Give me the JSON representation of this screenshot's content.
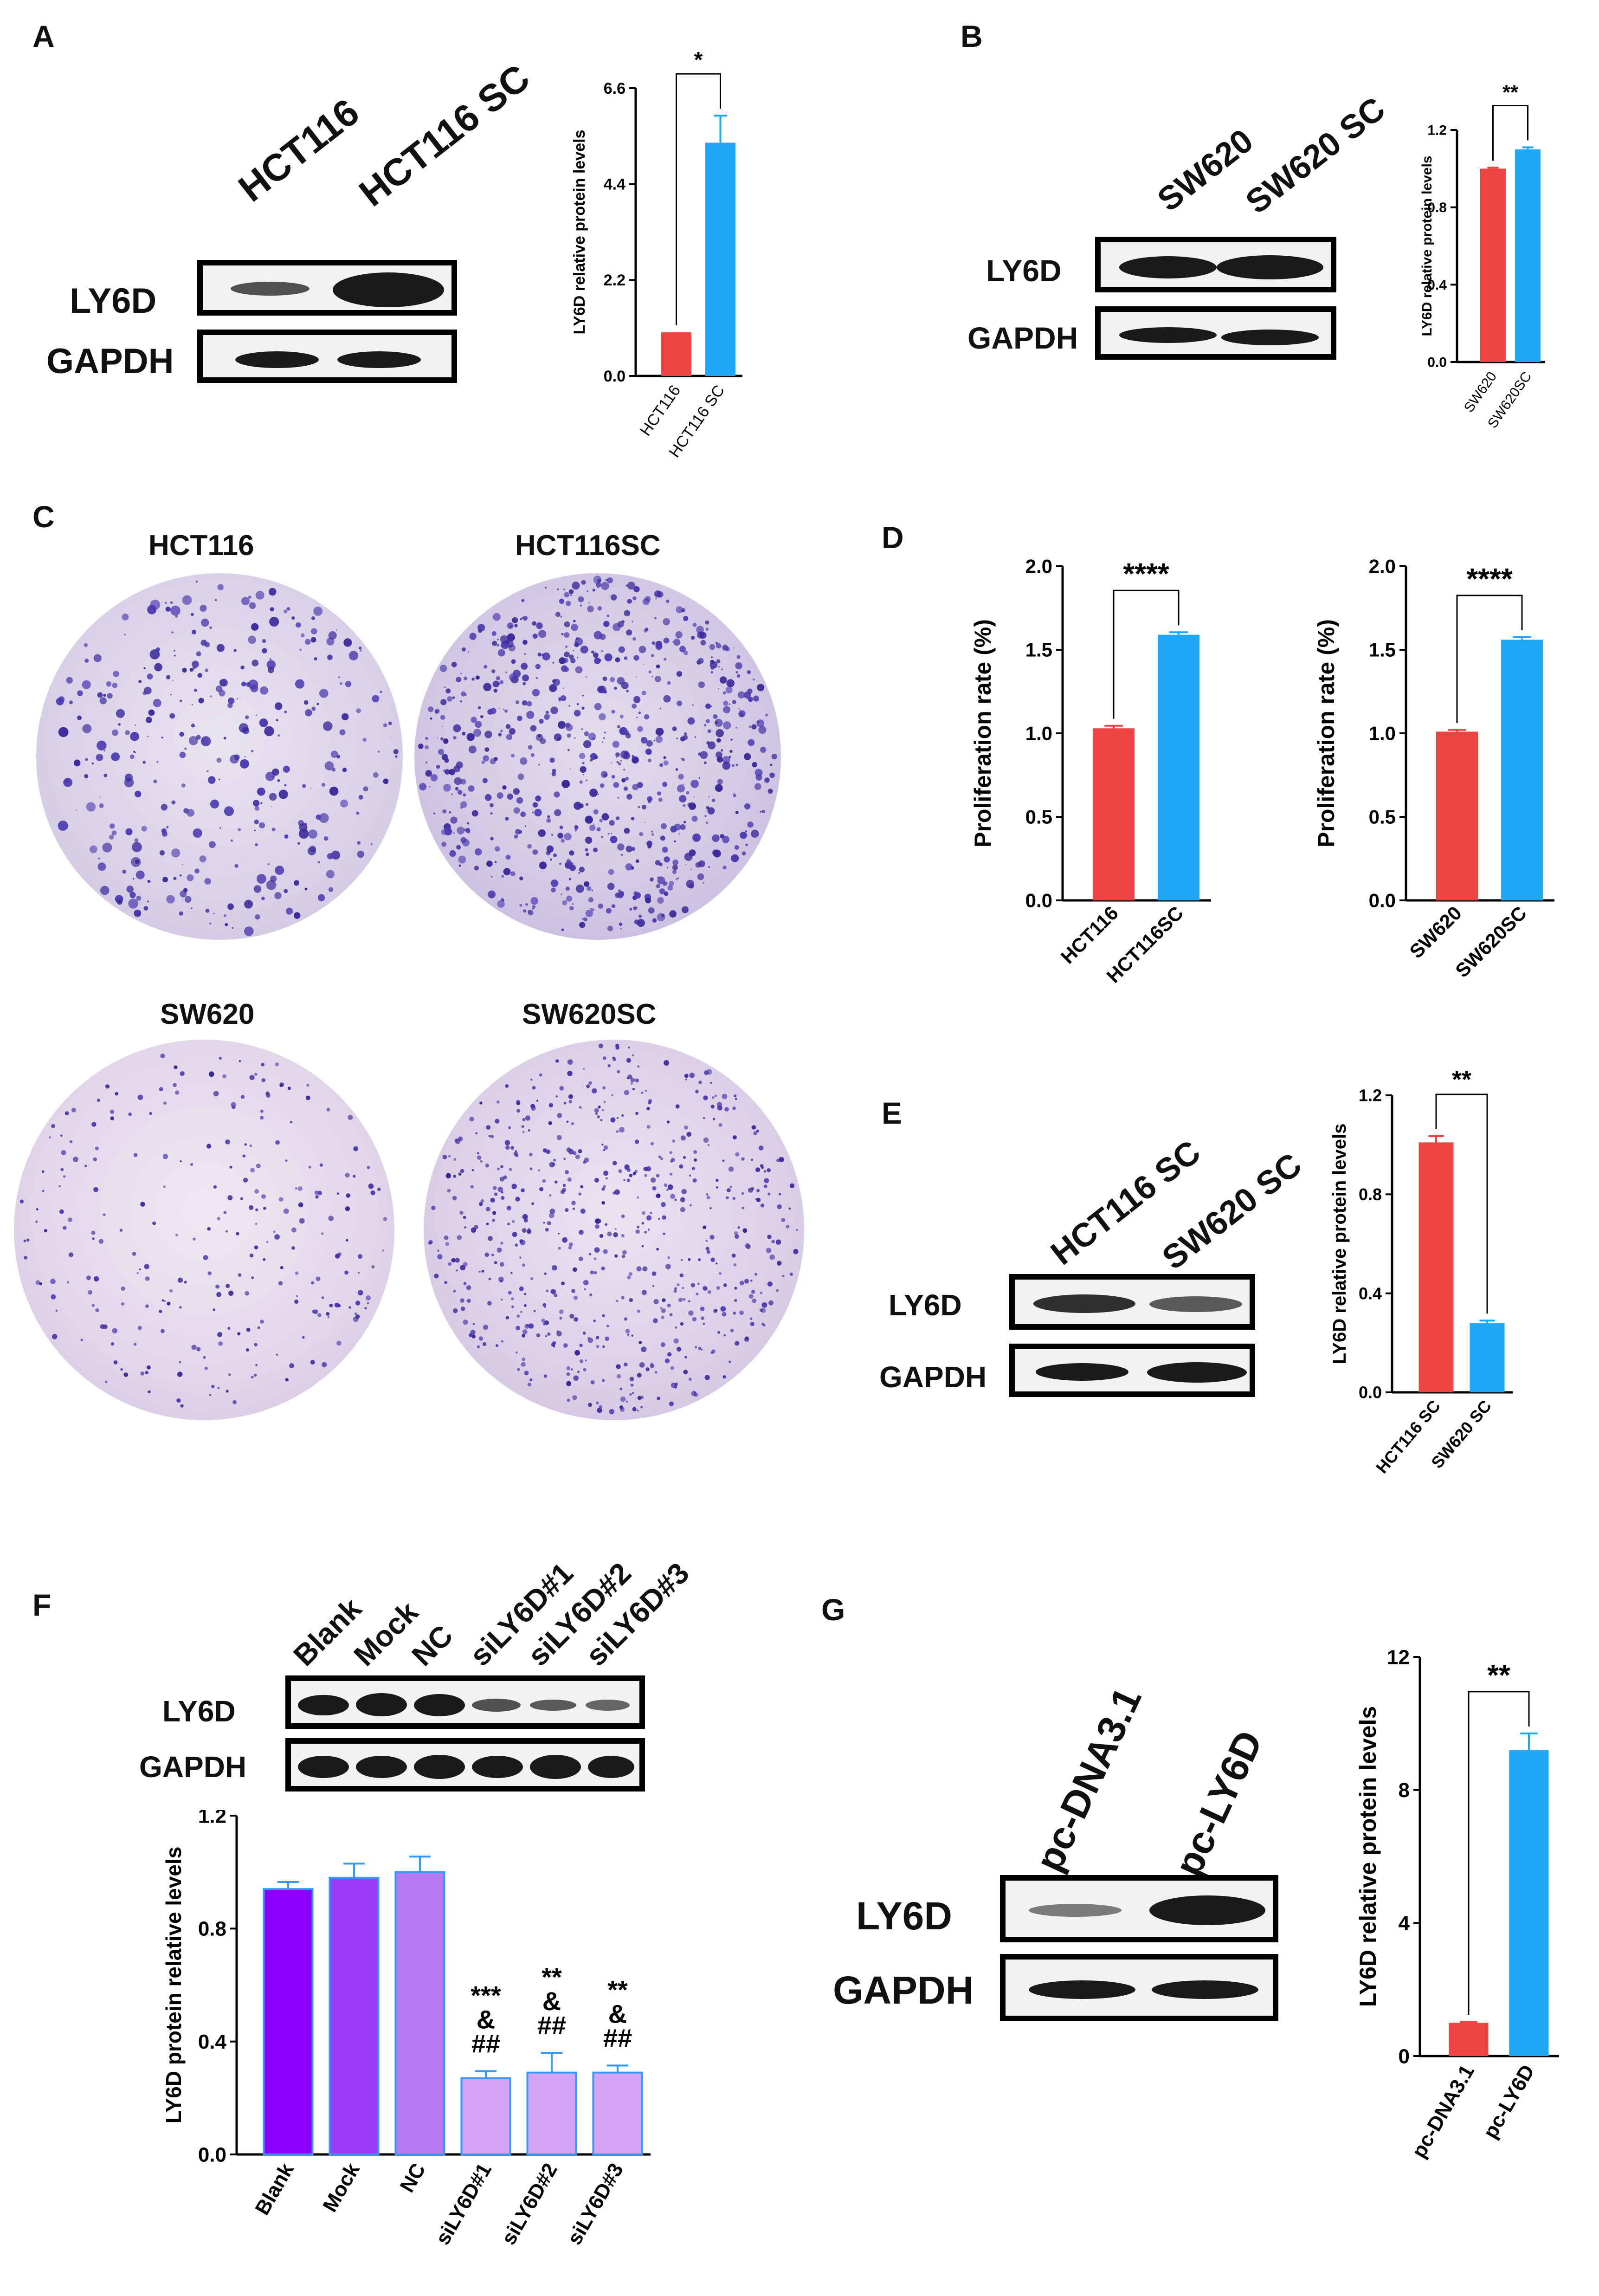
{
  "panels": {
    "A": {
      "letter": "A",
      "lanes": [
        "HCT116",
        "HCT116 SC"
      ],
      "rows": [
        "LY6D",
        "GAPDH"
      ]
    },
    "B": {
      "letter": "B",
      "lanes": [
        "SW620",
        "SW620 SC"
      ],
      "rows": [
        "LY6D",
        "GAPDH"
      ]
    },
    "C": {
      "letter": "C",
      "plates": [
        "HCT116",
        "HCT116SC",
        "SW620",
        "SW620SC"
      ]
    },
    "D": {
      "letter": "D"
    },
    "E": {
      "letter": "E",
      "lanes": [
        "HCT116 SC",
        "SW620 SC"
      ],
      "rows": [
        "LY6D",
        "GAPDH"
      ]
    },
    "F": {
      "letter": "F",
      "lanes": [
        "Blank",
        "Mock",
        "NC",
        "siLY6D#1",
        "siLY6D#2",
        "siLY6D#3"
      ],
      "rows": [
        "LY6D",
        "GAPDH"
      ]
    },
    "G": {
      "letter": "G",
      "lanes": [
        "pc-DNA3.1",
        "pc-LY6D"
      ],
      "rows": [
        "LY6D",
        "GAPDH"
      ]
    }
  },
  "colors": {
    "red": "#ef4444",
    "blue": "#1ea7f5",
    "violet1": "#8b00ff",
    "violet2": "#9b3cf6",
    "violet3": "#b77cf2",
    "lilac": "#d4a5f5",
    "errorbar": "#3399ff"
  },
  "chart_data": [
    {
      "id": "A",
      "type": "bar",
      "categories": [
        "HCT116",
        "HCT116 SC"
      ],
      "values": [
        1.0,
        5.35
      ],
      "errors": [
        0.0,
        0.62
      ],
      "ylabel": "LY6D relative protein  levels",
      "ylim": [
        0,
        6.6
      ],
      "yticks": [
        "0.0",
        "2.2",
        "4.4",
        "6.6"
      ],
      "significance": "*",
      "colors": [
        "red",
        "blue"
      ]
    },
    {
      "id": "B",
      "type": "bar",
      "categories": [
        "SW620",
        "SW620SC"
      ],
      "values": [
        1.0,
        1.1
      ],
      "errors": [
        0.005,
        0.01
      ],
      "ylabel": "LY6D relative protein  levels",
      "ylim": [
        0,
        1.2
      ],
      "yticks": [
        "0.0",
        "0.4",
        "0.8",
        "1.2"
      ],
      "significance": "**",
      "colors": [
        "red",
        "blue"
      ]
    },
    {
      "id": "D1",
      "type": "bar",
      "categories": [
        "HCT116",
        "HCT116SC"
      ],
      "values": [
        1.03,
        1.59
      ],
      "errors": [
        0.015,
        0.015
      ],
      "ylabel": "Proliferation rate (%)",
      "ylim": [
        0,
        2.0
      ],
      "yticks": [
        "0.0",
        "0.5",
        "1.0",
        "1.5",
        "2.0"
      ],
      "significance": "****",
      "colors": [
        "red",
        "blue"
      ]
    },
    {
      "id": "D2",
      "type": "bar",
      "categories": [
        "SW620",
        "SW620SC"
      ],
      "values": [
        1.01,
        1.56
      ],
      "errors": [
        0.01,
        0.015
      ],
      "ylabel": "Proliferation rate (%)",
      "ylim": [
        0,
        2.0
      ],
      "yticks": [
        "0.0",
        "0.5",
        "1.0",
        "1.5",
        "2.0"
      ],
      "significance": "****",
      "colors": [
        "red",
        "blue"
      ]
    },
    {
      "id": "E",
      "type": "bar",
      "categories": [
        "HCT116 SC",
        "SW620 SC"
      ],
      "values": [
        1.01,
        0.28
      ],
      "errors": [
        0.025,
        0.01
      ],
      "ylabel": "LY6D relative protein levels",
      "ylim": [
        0,
        1.2
      ],
      "yticks": [
        "0.0",
        "0.4",
        "0.8",
        "1.2"
      ],
      "significance": "**",
      "colors": [
        "red",
        "blue"
      ]
    },
    {
      "id": "F",
      "type": "bar",
      "categories": [
        "Blank",
        "Mock",
        "NC",
        "siLY6D#1",
        "siLY6D#2",
        "siLY6D#3"
      ],
      "values": [
        0.94,
        0.98,
        1.0,
        0.27,
        0.29,
        0.29
      ],
      "errors": [
        0.025,
        0.05,
        0.055,
        0.025,
        0.07,
        0.025
      ],
      "ylabel": "LY6D protein relative levels",
      "ylim": [
        0,
        1.2
      ],
      "yticks": [
        "0.0",
        "0.4",
        "0.8",
        "1.2"
      ],
      "annotations": [
        "",
        "",
        "",
        "***\n&\n##",
        "**\n&\n##",
        "**\n&\n##"
      ],
      "colors": [
        "violet1",
        "violet2",
        "violet3",
        "lilac",
        "lilac",
        "lilac"
      ]
    },
    {
      "id": "G",
      "type": "bar",
      "categories": [
        "pc-DNA3.1",
        "pc-LY6D"
      ],
      "values": [
        1.0,
        9.2
      ],
      "errors": [
        0.03,
        0.5
      ],
      "ylabel": "LY6D relative protein levels",
      "ylim": [
        0,
        12
      ],
      "yticks": [
        "0",
        "4",
        "8",
        "12"
      ],
      "significance": "**",
      "colors": [
        "red",
        "blue"
      ]
    }
  ]
}
